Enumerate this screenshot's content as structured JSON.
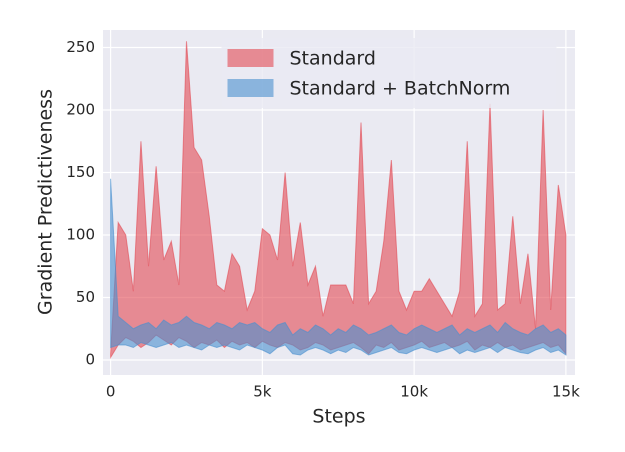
{
  "chart_data": {
    "type": "band",
    "xlabel": "Steps",
    "ylabel": "Gradient Predictiveness",
    "x": [
      0,
      250,
      500,
      750,
      1000,
      1250,
      1500,
      1750,
      2000,
      2250,
      2500,
      2750,
      3000,
      3250,
      3500,
      3750,
      4000,
      4250,
      4500,
      4750,
      5000,
      5250,
      5500,
      5750,
      6000,
      6250,
      6500,
      6750,
      7000,
      7250,
      7500,
      7750,
      8000,
      8250,
      8500,
      8750,
      9000,
      9250,
      9500,
      9750,
      10000,
      10250,
      10500,
      10750,
      11000,
      11250,
      11500,
      11750,
      12000,
      12250,
      12500,
      12750,
      13000,
      13250,
      13500,
      13750,
      14000,
      14250,
      14500,
      14750,
      15000
    ],
    "series": [
      {
        "name": "Standard",
        "color": "#e24a53",
        "upper": [
          5,
          110,
          100,
          55,
          175,
          75,
          155,
          80,
          95,
          60,
          255,
          170,
          160,
          115,
          60,
          55,
          85,
          75,
          40,
          55,
          105,
          100,
          80,
          150,
          75,
          110,
          60,
          75,
          35,
          60,
          60,
          60,
          45,
          190,
          45,
          55,
          95,
          160,
          55,
          40,
          55,
          55,
          65,
          55,
          45,
          35,
          55,
          175,
          35,
          45,
          205,
          40,
          45,
          115,
          45,
          85,
          25,
          200,
          40,
          140,
          100
        ],
        "lower": [
          2,
          12,
          18,
          15,
          10,
          14,
          20,
          16,
          12,
          18,
          15,
          10,
          14,
          12,
          16,
          10,
          15,
          12,
          14,
          10,
          15,
          12,
          10,
          14,
          12,
          8,
          10,
          14,
          12,
          8,
          10,
          12,
          14,
          10,
          5,
          12,
          10,
          14,
          8,
          10,
          12,
          15,
          10,
          12,
          14,
          10,
          12,
          15,
          8,
          12,
          10,
          14,
          10,
          12,
          8,
          10,
          12,
          14,
          10,
          12,
          5
        ]
      },
      {
        "name": "Standard + BatchNorm",
        "color": "#4a8fcf",
        "upper": [
          145,
          35,
          30,
          25,
          28,
          30,
          25,
          32,
          28,
          30,
          35,
          30,
          28,
          25,
          30,
          28,
          25,
          30,
          28,
          30,
          25,
          22,
          28,
          30,
          20,
          25,
          22,
          28,
          25,
          20,
          25,
          22,
          28,
          25,
          20,
          22,
          25,
          28,
          22,
          20,
          25,
          28,
          25,
          22,
          25,
          28,
          20,
          25,
          22,
          25,
          28,
          22,
          30,
          25,
          22,
          20,
          25,
          28,
          22,
          25,
          20
        ],
        "lower": [
          10,
          12,
          12,
          10,
          14,
          12,
          10,
          12,
          14,
          10,
          12,
          10,
          8,
          12,
          10,
          12,
          10,
          8,
          12,
          10,
          8,
          5,
          10,
          12,
          5,
          4,
          8,
          10,
          8,
          5,
          8,
          6,
          10,
          8,
          4,
          6,
          8,
          10,
          6,
          5,
          8,
          10,
          8,
          6,
          8,
          10,
          5,
          8,
          6,
          8,
          10,
          6,
          10,
          8,
          6,
          5,
          8,
          10,
          6,
          8,
          4
        ]
      }
    ],
    "xlim": [
      -250,
      15300
    ],
    "ylim": [
      -12,
      264
    ],
    "xticks": [
      0,
      {
        "value": 5000,
        "label": "5k"
      },
      {
        "value": 10000,
        "label": "10k"
      },
      {
        "value": 15000,
        "label": "15k"
      }
    ],
    "yticks": [
      0,
      50,
      100,
      150,
      200,
      250
    ],
    "grid": true,
    "legend": "upper center",
    "opacity": 0.6
  }
}
